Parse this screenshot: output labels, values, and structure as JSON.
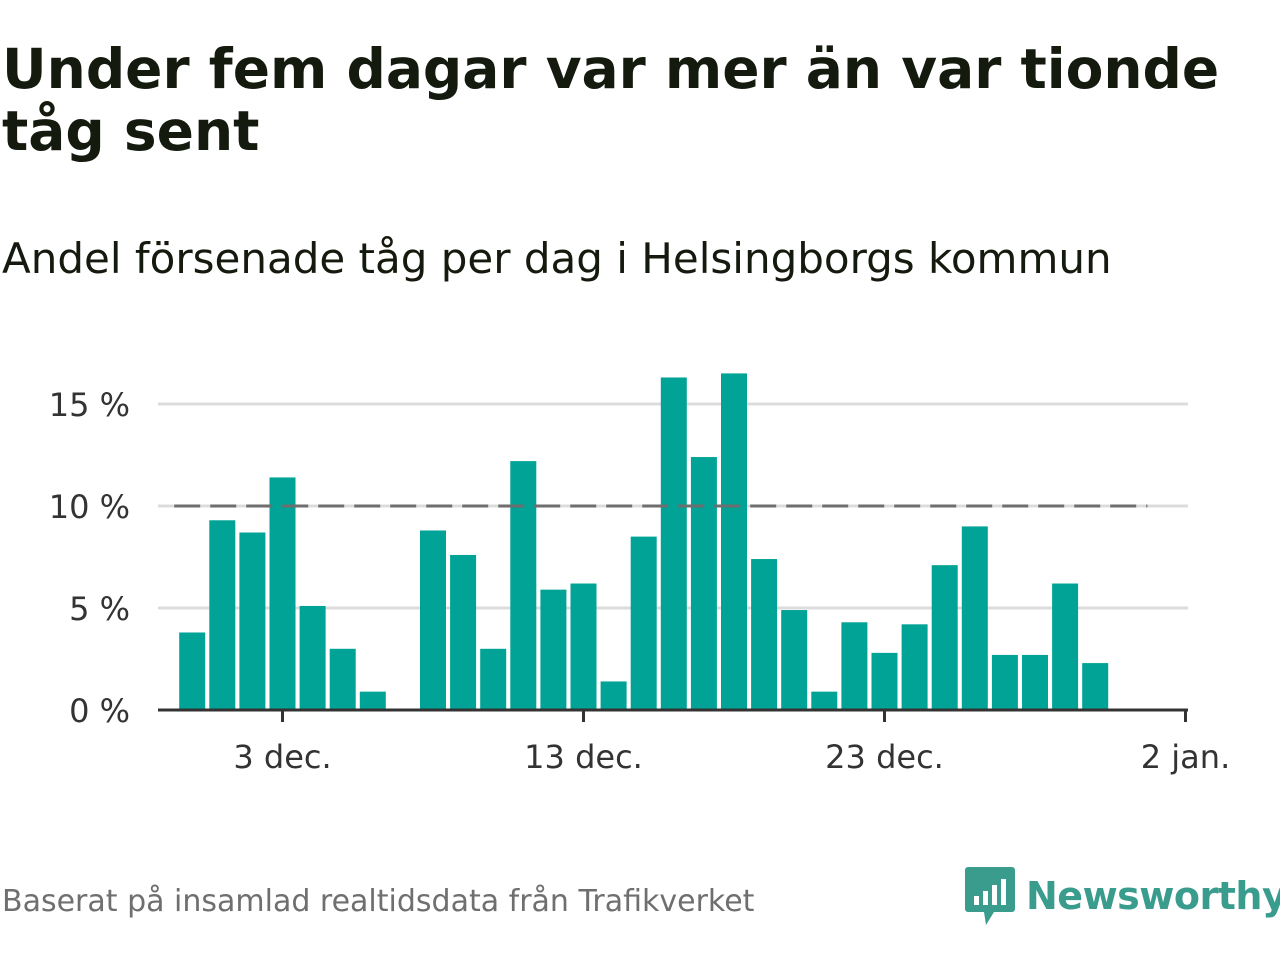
{
  "title": "Under fem dagar var mer än var tionde tåg sent",
  "subtitle": "Andel försenade tåg per dag i Helsingborgs kommun",
  "source": "Baserat på insamlad realtidsdata från Trafikverket",
  "brand": {
    "name": "Newsworthy",
    "color": "#3a9c8d"
  },
  "chart_data": {
    "type": "bar",
    "title": "Under fem dagar var mer än var tionde tåg sent",
    "subtitle": "Andel försenade tåg per dag i Helsingborgs kommun",
    "xlabel": "",
    "ylabel": "",
    "bar_color": "#00a396",
    "grid": true,
    "ylim": [
      0,
      17
    ],
    "yticks": [
      0,
      5,
      10,
      15
    ],
    "ytick_labels": [
      "0 %",
      "5 %",
      "10 %",
      "15 %"
    ],
    "xrange": [
      "2024-11-28",
      "2025-01-02"
    ],
    "xticks": [
      {
        "date": "2024-12-03",
        "label": "3 dec."
      },
      {
        "date": "2024-12-13",
        "label": "13 dec."
      },
      {
        "date": "2024-12-23",
        "label": "23 dec."
      },
      {
        "date": "2025-01-02",
        "label": "2 jan."
      }
    ],
    "reference_line": {
      "value": 10,
      "start": "2024-11-30",
      "end": "2025-01-01",
      "style": "dashed",
      "color": "#6e6e6e"
    },
    "series": [
      {
        "values": [
          {
            "x": "2024-11-30",
            "y": 3.8
          },
          {
            "x": "2024-12-01",
            "y": 9.3
          },
          {
            "x": "2024-12-02",
            "y": 8.7
          },
          {
            "x": "2024-12-03",
            "y": 11.4
          },
          {
            "x": "2024-12-04",
            "y": 5.1
          },
          {
            "x": "2024-12-05",
            "y": 3.0
          },
          {
            "x": "2024-12-06",
            "y": 0.9
          },
          {
            "x": "2024-12-08",
            "y": 8.8
          },
          {
            "x": "2024-12-09",
            "y": 7.6
          },
          {
            "x": "2024-12-10",
            "y": 3.0
          },
          {
            "x": "2024-12-11",
            "y": 12.2
          },
          {
            "x": "2024-12-12",
            "y": 5.9
          },
          {
            "x": "2024-12-13",
            "y": 6.2
          },
          {
            "x": "2024-12-14",
            "y": 1.4
          },
          {
            "x": "2024-12-15",
            "y": 8.5
          },
          {
            "x": "2024-12-16",
            "y": 16.3
          },
          {
            "x": "2024-12-17",
            "y": 12.4
          },
          {
            "x": "2024-12-18",
            "y": 16.5
          },
          {
            "x": "2024-12-19",
            "y": 7.4
          },
          {
            "x": "2024-12-20",
            "y": 4.9
          },
          {
            "x": "2024-12-21",
            "y": 0.9
          },
          {
            "x": "2024-12-22",
            "y": 4.3
          },
          {
            "x": "2024-12-23",
            "y": 2.8
          },
          {
            "x": "2024-12-24",
            "y": 4.2
          },
          {
            "x": "2024-12-25",
            "y": 7.1
          },
          {
            "x": "2024-12-26",
            "y": 9.0
          },
          {
            "x": "2024-12-27",
            "y": 2.7
          },
          {
            "x": "2024-12-28",
            "y": 2.7
          },
          {
            "x": "2024-12-29",
            "y": 6.2
          },
          {
            "x": "2024-12-30",
            "y": 2.3
          }
        ]
      }
    ]
  }
}
